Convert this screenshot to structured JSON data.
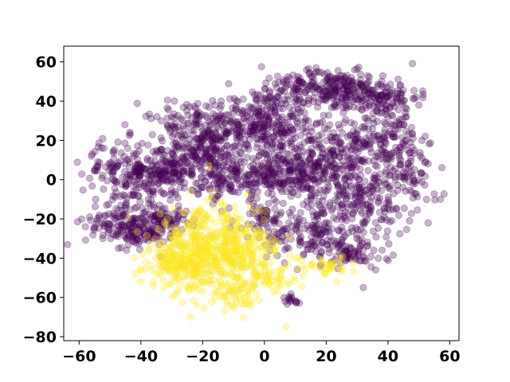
{
  "chart_data": {
    "type": "scatter",
    "title": "",
    "xlabel": "",
    "ylabel": "",
    "xlim": [
      -65,
      63
    ],
    "ylim": [
      -82,
      68
    ],
    "x_ticks": [
      -60,
      -40,
      -20,
      0,
      20,
      40,
      60
    ],
    "y_ticks": [
      -80,
      -60,
      -40,
      -20,
      0,
      20,
      40,
      60
    ],
    "x_tick_labels": [
      "−60",
      "−40",
      "−20",
      "0",
      "20",
      "40",
      "60"
    ],
    "y_tick_labels": [
      "−80",
      "−60",
      "−40",
      "−20",
      "0",
      "20",
      "40",
      "60"
    ],
    "grid": false,
    "legend": "none",
    "marker_alpha": 0.3,
    "series": [
      {
        "class_value": 0,
        "color": "#440154",
        "clusters": [
          {
            "cx": -2,
            "cy": 28,
            "sx": 9,
            "sy": 9,
            "n": 320
          },
          {
            "cx": 22,
            "cy": 10,
            "sx": 10,
            "sy": 9,
            "n": 300
          },
          {
            "cx": 24,
            "cy": 45,
            "sx": 7,
            "sy": 5,
            "n": 180
          },
          {
            "cx": 38,
            "cy": 42,
            "sx": 6,
            "sy": 5,
            "n": 110
          },
          {
            "cx": 40,
            "cy": 20,
            "sx": 6,
            "sy": 8,
            "n": 110
          },
          {
            "cx": -20,
            "cy": 15,
            "sx": 6,
            "sy": 5,
            "n": 150
          },
          {
            "cx": -32,
            "cy": 4,
            "sx": 5,
            "sy": 5,
            "n": 140
          },
          {
            "cx": -45,
            "cy": 4,
            "sx": 7,
            "sy": 8,
            "n": 150
          },
          {
            "cx": -46,
            "cy": -22,
            "sx": 6,
            "sy": 6,
            "n": 120
          },
          {
            "cx": -40,
            "cy": -28,
            "sx": 4,
            "sy": 3,
            "n": 60
          },
          {
            "cx": -33,
            "cy": -20,
            "sx": 4,
            "sy": 4,
            "n": 90
          },
          {
            "cx": 5,
            "cy": 2,
            "sx": 7,
            "sy": 6,
            "n": 170
          },
          {
            "cx": -12,
            "cy": 0,
            "sx": 6,
            "sy": 5,
            "n": 120
          },
          {
            "cx": 30,
            "cy": -12,
            "sx": 9,
            "sy": 8,
            "n": 180
          },
          {
            "cx": 15,
            "cy": -28,
            "sx": 7,
            "sy": 7,
            "n": 130
          },
          {
            "cx": 28,
            "cy": -38,
            "sx": 6,
            "sy": 4,
            "n": 70
          },
          {
            "cx": 48,
            "cy": 2,
            "sx": 4,
            "sy": 7,
            "n": 60
          },
          {
            "cx": 10,
            "cy": 48,
            "sx": 7,
            "sy": 4,
            "n": 70
          },
          {
            "cx": -25,
            "cy": 30,
            "sx": 8,
            "sy": 5,
            "n": 80
          },
          {
            "cx": 0,
            "cy": -20,
            "sx": 5,
            "sy": 5,
            "n": 60
          },
          {
            "cx": 8,
            "cy": -62,
            "sx": 2,
            "sy": 1.5,
            "n": 16
          }
        ],
        "outliers": [
          [
            -58,
            -24
          ],
          [
            57,
            -10
          ],
          [
            53,
            -22
          ],
          [
            51,
            20
          ],
          [
            50,
            38
          ],
          [
            44,
            48
          ],
          [
            46,
            32
          ],
          [
            36,
            -46
          ],
          [
            -56,
            12
          ],
          [
            -52,
            16
          ],
          [
            0,
            40
          ],
          [
            32,
            -55
          ]
        ]
      },
      {
        "class_value": 1,
        "color": "#fde725",
        "clusters": [
          {
            "cx": -20,
            "cy": -36,
            "sx": 8,
            "sy": 10,
            "n": 380
          },
          {
            "cx": -8,
            "cy": -36,
            "sx": 7,
            "sy": 8,
            "n": 200
          },
          {
            "cx": -28,
            "cy": -44,
            "sx": 5,
            "sy": 5,
            "n": 110
          },
          {
            "cx": -10,
            "cy": -58,
            "sx": 4,
            "sy": 3,
            "n": 50
          },
          {
            "cx": 20,
            "cy": -44,
            "sx": 5,
            "sy": 2.5,
            "n": 40
          },
          {
            "cx": 2,
            "cy": -50,
            "sx": 4,
            "sy": 4,
            "n": 50
          }
        ],
        "outliers": [
          [
            -24,
            -70
          ],
          [
            7,
            -75
          ],
          [
            -18,
            7
          ],
          [
            -24,
            -6
          ],
          [
            -42,
            -40
          ],
          [
            -10,
            -64
          ]
        ]
      }
    ]
  }
}
